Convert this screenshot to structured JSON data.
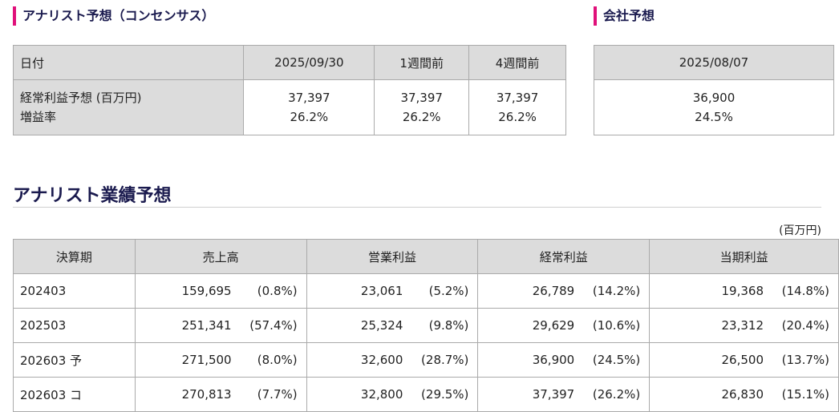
{
  "consensus": {
    "title": "アナリスト予想（コンセンサス）",
    "header": [
      "日付",
      "2025/09/30",
      "1週間前",
      "4週間前"
    ],
    "labels": [
      "経常利益予想 (百万円)",
      "増益率"
    ],
    "cols": [
      {
        "value": "37,397",
        "rate": "26.2%"
      },
      {
        "value": "37,397",
        "rate": "26.2%"
      },
      {
        "value": "37,397",
        "rate": "26.2%"
      }
    ]
  },
  "company": {
    "title": "会社予想",
    "date": "2025/08/07",
    "value": "36,900",
    "rate": "24.5%"
  },
  "performance": {
    "title": "アナリスト業績予想",
    "unit": "(百万円)",
    "columns": [
      "決算期",
      "売上高",
      "営業利益",
      "経常利益",
      "当期利益"
    ],
    "rows": [
      {
        "period": "202403",
        "sales": [
          "159,695",
          "(0.8%)"
        ],
        "op": [
          "23,061",
          "(5.2%)"
        ],
        "ord": [
          "26,789",
          "(14.2%)"
        ],
        "net": [
          "19,368",
          "(14.8%)"
        ]
      },
      {
        "period": "202503",
        "sales": [
          "251,341",
          "(57.4%)"
        ],
        "op": [
          "25,324",
          "(9.8%)"
        ],
        "ord": [
          "29,629",
          "(10.6%)"
        ],
        "net": [
          "23,312",
          "(20.4%)"
        ]
      },
      {
        "period": "202603 予",
        "sales": [
          "271,500",
          "(8.0%)"
        ],
        "op": [
          "32,600",
          "(28.7%)"
        ],
        "ord": [
          "36,900",
          "(24.5%)"
        ],
        "net": [
          "26,500",
          "(13.7%)"
        ]
      },
      {
        "period": "202603 コ",
        "sales": [
          "270,813",
          "(7.7%)"
        ],
        "op": [
          "32,800",
          "(29.5%)"
        ],
        "ord": [
          "37,397",
          "(26.2%)"
        ],
        "net": [
          "26,830",
          "(15.1%)"
        ]
      }
    ]
  },
  "colors": {
    "accent": "#e0107a",
    "title": "#1a1a4e",
    "header_bg": "#dcdcdc"
  }
}
